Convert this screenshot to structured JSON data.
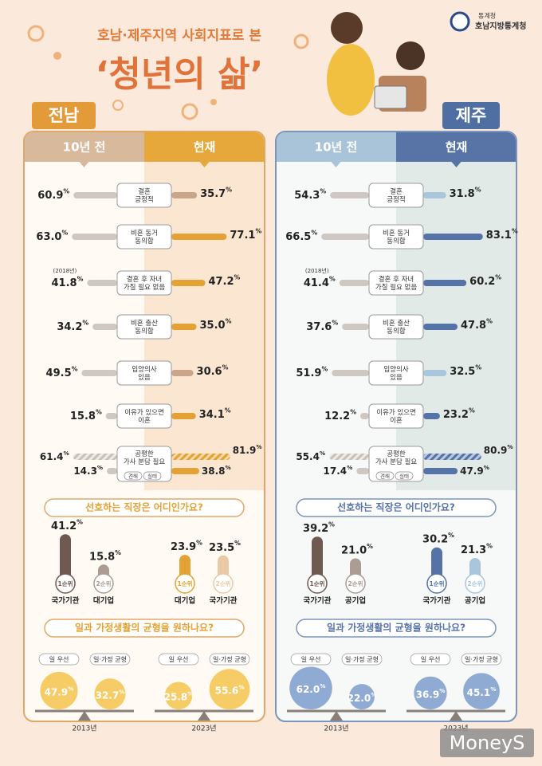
{
  "header": {
    "org_small": "통계청",
    "org": "호남지방통계청",
    "subtitle": "호남·제주지역 사회지표로 본",
    "title": "‘청년의 삶’"
  },
  "unit": "%",
  "watermark": "MoneyS",
  "regions": [
    {
      "name": "전남",
      "past_label": "10년 전",
      "now_label": "현재",
      "indicators": [
        {
          "label": [
            "결혼",
            "긍정적"
          ],
          "past": 60.9,
          "now": 35.7
        },
        {
          "label": [
            "비혼 동거",
            "동의함"
          ],
          "past": {
            "value": 63.0,
            "label": "63.0"
          },
          "now": 77.1
        },
        {
          "label": [
            "결혼 후 자녀",
            "가질 필요 없음"
          ],
          "note": "(2018년)",
          "past": 41.8,
          "now": 47.2
        },
        {
          "label": [
            "비혼 출산",
            "동의함"
          ],
          "past": 34.2,
          "now": {
            "value": 35.0,
            "label": "35.0"
          }
        },
        {
          "label": [
            "입양의사",
            "있음"
          ],
          "past": 49.5,
          "now": 30.6
        },
        {
          "label": [
            "이유가 있으면",
            "이혼"
          ],
          "past": 15.8,
          "now": 34.1
        },
        {
          "label": [
            "공평한",
            "가사 분담 필요"
          ],
          "tags": [
            "견해",
            "실태"
          ],
          "past": [
            61.4,
            14.3
          ],
          "now": [
            81.9,
            38.8
          ]
        }
      ],
      "jobs": {
        "title": "선호하는 직장은 어디인가요?",
        "groups": [
          {
            "items": [
              {
                "rank": "1순위",
                "name": "국가기관",
                "value": 41.2
              },
              {
                "rank": "2순위",
                "name": "대기업",
                "value": 15.8
              }
            ]
          },
          {
            "items": [
              {
                "rank": "1순위",
                "name": "대기업",
                "value": 23.9
              },
              {
                "rank": "2순위",
                "name": "국가기관",
                "value": 23.5
              }
            ]
          }
        ]
      },
      "balance": {
        "title": "일과 가정생활의 균형을 원하나요?",
        "groups": [
          {
            "year": "2013년",
            "items": [
              {
                "name": "일 우선",
                "value": 47.9
              },
              {
                "name": "일·가정 균형",
                "value": 32.7
              }
            ]
          },
          {
            "year": "2023년",
            "items": [
              {
                "name": "일 우선",
                "value": 25.8
              },
              {
                "name": "일·가정 균형",
                "value": 55.6
              }
            ]
          }
        ]
      }
    },
    {
      "name": "제주",
      "past_label": "10년 전",
      "now_label": "현재",
      "indicators": [
        {
          "label": [
            "결혼",
            "긍정적"
          ],
          "past": 54.3,
          "now": 31.8
        },
        {
          "label": [
            "비혼 동거",
            "동의함"
          ],
          "past": 66.5,
          "now": 83.1
        },
        {
          "label": [
            "결혼 후 자녀",
            "가질 필요 없음"
          ],
          "note": "(2018년)",
          "past": 41.4,
          "now": 60.2
        },
        {
          "label": [
            "비혼 출산",
            "동의함"
          ],
          "past": 37.6,
          "now": 47.8
        },
        {
          "label": [
            "입양의사",
            "있음"
          ],
          "past": 51.9,
          "now": 32.5
        },
        {
          "label": [
            "이유가 있으면",
            "이혼"
          ],
          "past": 12.2,
          "now": 23.2
        },
        {
          "label": [
            "공평한",
            "가사 분담 필요"
          ],
          "tags": [
            "견해",
            "실태"
          ],
          "past": [
            55.4,
            17.4
          ],
          "now": [
            80.9,
            47.9
          ]
        }
      ],
      "jobs": {
        "title": "선호하는 직장은 어디인가요?",
        "groups": [
          {
            "items": [
              {
                "rank": "1순위",
                "name": "국가기관",
                "value": 39.2
              },
              {
                "rank": "2순위",
                "name": "공기업",
                "value": {
                  "value": 21.0,
                  "label": "21.0"
                }
              }
            ]
          },
          {
            "items": [
              {
                "rank": "1순위",
                "name": "국가기관",
                "value": 30.2
              },
              {
                "rank": "2순위",
                "name": "공기업",
                "value": 21.3
              }
            ]
          }
        ]
      },
      "balance": {
        "title": "일과 가정생활의 균형을 원하나요?",
        "groups": [
          {
            "year": "2013년",
            "items": [
              {
                "name": "일 우선",
                "value": {
                  "value": 62.0,
                  "label": "62.0"
                }
              },
              {
                "name": "일·가정 균형",
                "value": {
                  "value": 22.0,
                  "label": "22.0"
                }
              }
            ]
          },
          {
            "year": "2023년",
            "items": [
              {
                "name": "일 우선",
                "value": 36.9
              },
              {
                "name": "일·가정 균형",
                "value": 45.1
              }
            ]
          }
        ]
      }
    }
  ]
}
